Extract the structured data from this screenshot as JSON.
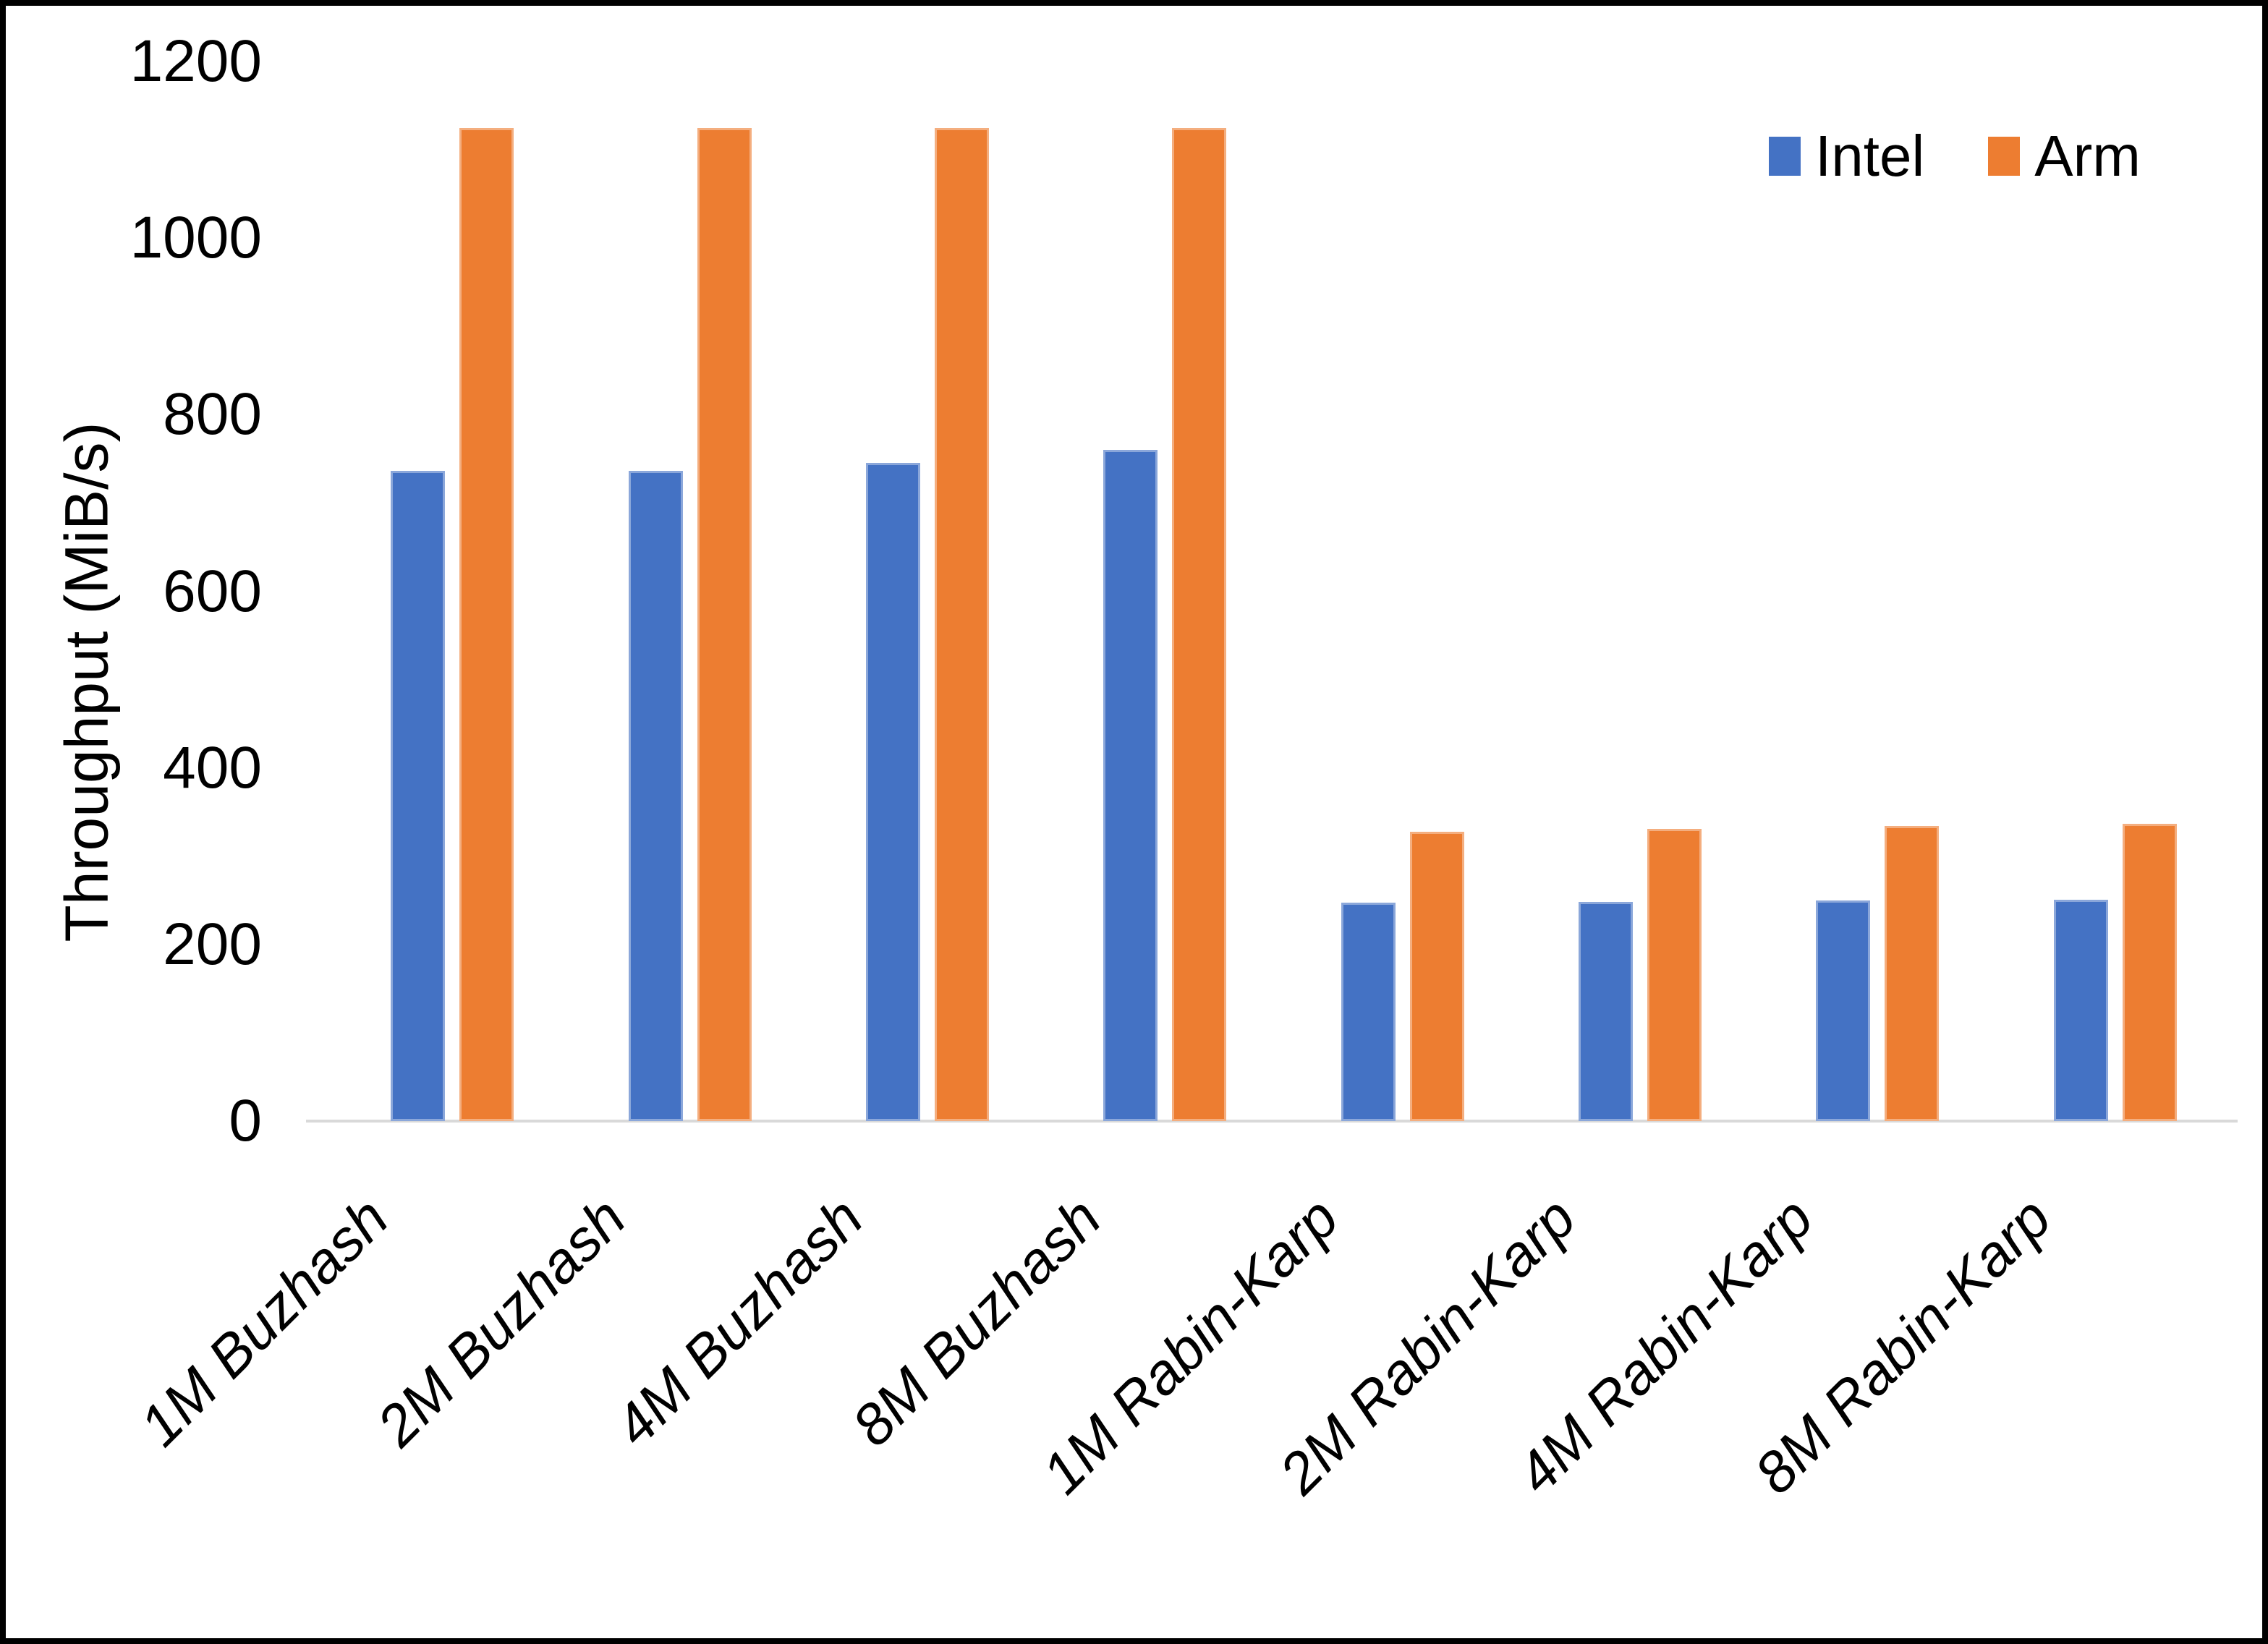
{
  "chart_data": {
    "type": "bar",
    "title": "",
    "xlabel": "",
    "ylabel": "Throughput (MiB/s)",
    "ylim": [
      0,
      1200
    ],
    "yticks": [
      0,
      200,
      400,
      600,
      800,
      1000,
      1200
    ],
    "grid": false,
    "legend_position": "top-right",
    "categories": [
      "1M Buzhash",
      "2M Buzhash",
      "4M Buzhash",
      "8M Buzhash",
      "1M Rabin-Karp",
      "2M Rabin-Karp",
      "4M Rabin-Karp",
      "8M Rabin-Karp"
    ],
    "series": [
      {
        "name": "Intel",
        "color": "#4472C4",
        "values": [
          736,
          736,
          745,
          760,
          247,
          248,
          250,
          251
        ]
      },
      {
        "name": "Arm",
        "color": "#ED7D31",
        "values": [
          1125,
          1125,
          1125,
          1125,
          328,
          331,
          334,
          337
        ]
      }
    ]
  },
  "legend": {
    "items": [
      {
        "label": "Intel",
        "color": "#4472C4"
      },
      {
        "label": "Arm",
        "color": "#ED7D31"
      }
    ]
  },
  "colors": {
    "axis_line": "#D9D9D9",
    "text": "#000000",
    "frame_border": "#000000",
    "background": "#FFFFFF"
  }
}
